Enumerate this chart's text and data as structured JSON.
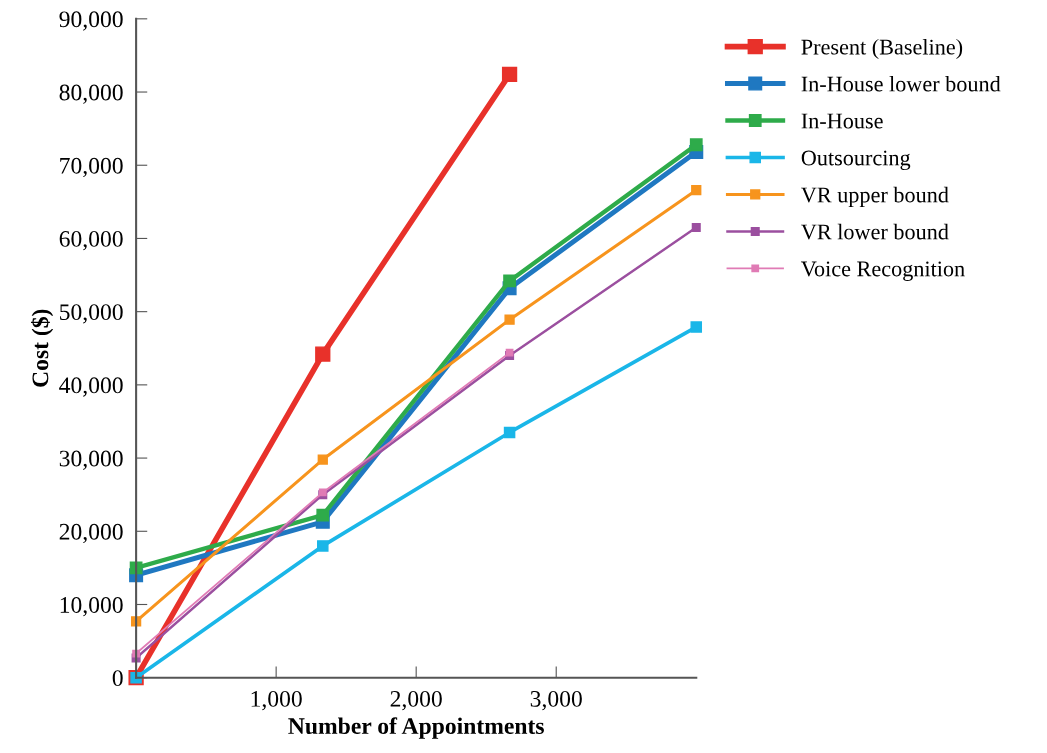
{
  "chart_data": {
    "type": "line",
    "xlabel": "Number of Appointments",
    "ylabel": "Cost ($)",
    "x": [
      0,
      1333,
      2667,
      4000
    ],
    "xlim": [
      0,
      4000
    ],
    "xticks": [
      {
        "value": 1000,
        "label": "1,000"
      },
      {
        "value": 2000,
        "label": "2,000"
      },
      {
        "value": 3000,
        "label": "3,000"
      }
    ],
    "ylim": [
      0,
      90000
    ],
    "yticks": [
      {
        "value": 0,
        "label": "0"
      },
      {
        "value": 10000,
        "label": "10,000"
      },
      {
        "value": 20000,
        "label": "20,000"
      },
      {
        "value": 30000,
        "label": "30,000"
      },
      {
        "value": 40000,
        "label": "40,000"
      },
      {
        "value": 50000,
        "label": "50,000"
      },
      {
        "value": 60000,
        "label": "60,000"
      },
      {
        "value": 70000,
        "label": "70,000"
      },
      {
        "value": 80000,
        "label": "80,000"
      },
      {
        "value": 90000,
        "label": "90,000"
      }
    ],
    "marker": "square",
    "grid": false,
    "legend": "right",
    "series": [
      {
        "name": "Present (Baseline)",
        "color": "#e8312a",
        "values": [
          0,
          44200,
          82400,
          null
        ]
      },
      {
        "name": "In-House lower bound",
        "color": "#1f78c1",
        "values": [
          14000,
          21300,
          53200,
          71800
        ]
      },
      {
        "name": "In-House",
        "color": "#2eab4a",
        "values": [
          15000,
          22200,
          54200,
          72800
        ]
      },
      {
        "name": "Outsourcing",
        "color": "#1ab6e8",
        "values": [
          0,
          18000,
          33500,
          47900
        ]
      },
      {
        "name": "VR upper bound",
        "color": "#f7941d",
        "values": [
          7700,
          29800,
          48900,
          66600
        ]
      },
      {
        "name": "VR lower bound",
        "color": "#9b4f9f",
        "values": [
          2700,
          25000,
          44000,
          61500
        ]
      },
      {
        "name": "Voice Recognition",
        "color": "#e07bb5",
        "values": [
          3300,
          25300,
          44400,
          null
        ]
      }
    ]
  }
}
